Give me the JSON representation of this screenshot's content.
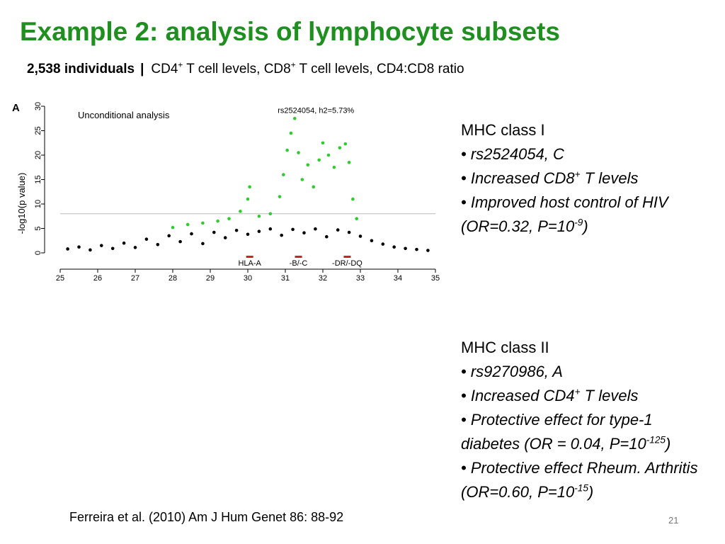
{
  "slide": {
    "title": "Example 2: analysis of lymphocyte subsets",
    "subtitle_bold": "2,538 individuals",
    "subtitle_sep": "|",
    "subtitle_parts": [
      {
        "text": "CD4",
        "sup": "+"
      },
      {
        "text": " T cell levels, CD8",
        "sup": "+"
      },
      {
        "text": " T cell levels, CD4:CD8 ratio",
        "sup": ""
      }
    ],
    "citation": "Ferreira et al. (2010) Am J Hum Genet 86: 88-92",
    "page_number": "21"
  },
  "colors": {
    "title": "#1f8f1f",
    "significant_points": "#2ecc2e",
    "background_points": "#000000",
    "hla_marker": "#cc2222",
    "threshold_line": "#bbbbbb"
  },
  "chart_data": {
    "type": "scatter",
    "panel_letter": "A",
    "title": "Unconditional analysis",
    "annotation": {
      "text": "rs2524054, h2=5.73%",
      "x": 31.25,
      "y": 27.5
    },
    "xlabel": "",
    "ylabel": "-log10(p value)",
    "xlim": [
      25,
      35
    ],
    "ylim": [
      0,
      30
    ],
    "xticks": [
      25,
      26,
      27,
      28,
      29,
      30,
      31,
      32,
      33,
      34,
      35
    ],
    "yticks": [
      0,
      5,
      10,
      15,
      20,
      25,
      30
    ],
    "threshold": 8,
    "grid": false,
    "legend": "none",
    "gene_markers": [
      {
        "label": "HLA-A",
        "x": 30.05
      },
      {
        "label": "-B/-C",
        "x": 31.35
      },
      {
        "label": "-DR/-DQ",
        "x": 32.65
      }
    ],
    "series": [
      {
        "color_key": "background_points",
        "points": [
          [
            25.2,
            0.8
          ],
          [
            25.5,
            1.2
          ],
          [
            25.8,
            0.6
          ],
          [
            26.1,
            1.5
          ],
          [
            26.4,
            0.9
          ],
          [
            26.7,
            2.0
          ],
          [
            27.0,
            1.1
          ],
          [
            27.3,
            2.8
          ],
          [
            27.6,
            1.7
          ],
          [
            27.9,
            3.5
          ],
          [
            28.2,
            2.3
          ],
          [
            28.5,
            3.9
          ],
          [
            28.8,
            1.9
          ],
          [
            29.1,
            4.2
          ],
          [
            29.4,
            3.1
          ],
          [
            29.7,
            4.6
          ],
          [
            30.0,
            3.8
          ],
          [
            30.3,
            4.4
          ],
          [
            30.6,
            4.9
          ],
          [
            30.9,
            3.6
          ],
          [
            31.2,
            4.8
          ],
          [
            31.5,
            4.1
          ],
          [
            31.8,
            4.9
          ],
          [
            32.1,
            3.3
          ],
          [
            32.4,
            4.7
          ],
          [
            32.7,
            4.2
          ],
          [
            33.0,
            3.4
          ],
          [
            33.3,
            2.5
          ],
          [
            33.6,
            1.8
          ],
          [
            33.9,
            1.2
          ],
          [
            34.2,
            0.9
          ],
          [
            34.5,
            0.7
          ],
          [
            34.8,
            0.5
          ]
        ]
      },
      {
        "color_key": "significant_points",
        "points": [
          [
            28.0,
            5.2
          ],
          [
            28.4,
            5.8
          ],
          [
            28.8,
            6.1
          ],
          [
            29.2,
            6.5
          ],
          [
            29.5,
            7.0
          ],
          [
            29.8,
            8.5
          ],
          [
            30.0,
            11.0
          ],
          [
            30.05,
            13.5
          ],
          [
            30.3,
            7.5
          ],
          [
            30.6,
            8.0
          ],
          [
            30.85,
            11.5
          ],
          [
            30.95,
            16.0
          ],
          [
            31.05,
            21.0
          ],
          [
            31.15,
            24.5
          ],
          [
            31.25,
            27.5
          ],
          [
            31.35,
            20.5
          ],
          [
            31.45,
            15.0
          ],
          [
            31.6,
            18.0
          ],
          [
            31.75,
            13.5
          ],
          [
            31.9,
            19.0
          ],
          [
            32.0,
            22.5
          ],
          [
            32.15,
            20.0
          ],
          [
            32.3,
            17.5
          ],
          [
            32.45,
            21.5
          ],
          [
            32.6,
            22.3
          ],
          [
            32.7,
            18.5
          ],
          [
            32.8,
            11.0
          ],
          [
            32.9,
            7.0
          ]
        ]
      }
    ]
  },
  "panels": {
    "mhc1": {
      "heading": "MHC class I",
      "bullets": [
        {
          "text": "rs2524054, C"
        },
        {
          "text": "Increased CD8",
          "sup": "+",
          "tail": " T levels"
        },
        {
          "text": "Improved host control of HIV (OR=0.32, P=10",
          "sup": "-9",
          "tail": ")"
        }
      ]
    },
    "mhc2": {
      "heading": "MHC class II",
      "bullets": [
        {
          "text": "rs9270986, A"
        },
        {
          "text": "Increased CD4",
          "sup": "+",
          "tail": " T levels"
        },
        {
          "text": "Protective effect for type-1 diabetes (OR = 0.04, P=10",
          "sup": "-125",
          "tail": ")"
        },
        {
          "text": "Protective effect Rheum. Arthritis (OR=0.60, P=10",
          "sup": "-15",
          "tail": ")"
        }
      ]
    }
  }
}
